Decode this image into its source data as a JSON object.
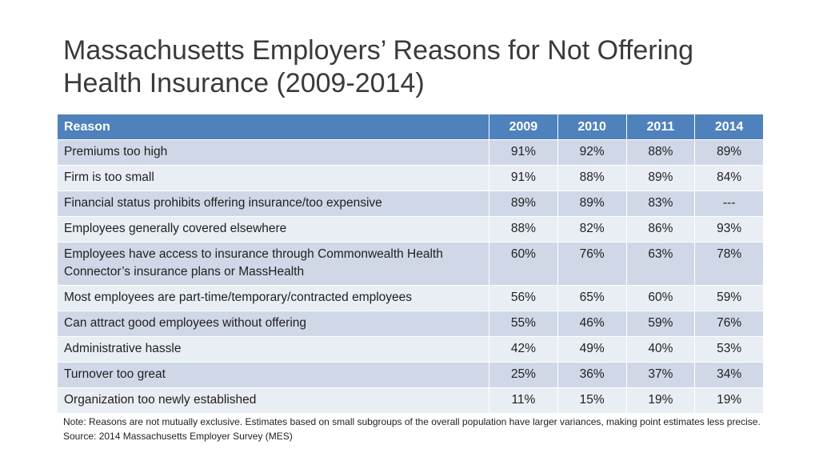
{
  "slide": {
    "title_line1": "Massachusetts Employers’ Reasons for Not Offering",
    "title_line2": "Health Insurance (2009-2014)"
  },
  "table": {
    "headers": [
      "Reason",
      "2009",
      "2010",
      "2011",
      "2014"
    ],
    "rows": [
      {
        "reason": "Premiums too high",
        "v2009": "91%",
        "v2010": "92%",
        "v2011": "88%",
        "v2014": "89%"
      },
      {
        "reason": "Firm is too small",
        "v2009": "91%",
        "v2010": "88%",
        "v2011": "89%",
        "v2014": "84%"
      },
      {
        "reason": "Financial status prohibits offering insurance/too expensive",
        "v2009": "89%",
        "v2010": "89%",
        "v2011": "83%",
        "v2014": "---"
      },
      {
        "reason": "Employees generally covered elsewhere",
        "v2009": "88%",
        "v2010": "82%",
        "v2011": "86%",
        "v2014": "93%"
      },
      {
        "reason": "Employees have access to insurance through Commonwealth Health Connector’s insurance plans or MassHealth",
        "v2009": "60%",
        "v2010": "76%",
        "v2011": "63%",
        "v2014": "78%"
      },
      {
        "reason": "Most employees are part-time/temporary/contracted employees",
        "v2009": "56%",
        "v2010": "65%",
        "v2011": "60%",
        "v2014": "59%"
      },
      {
        "reason": "Can attract good employees without offering",
        "v2009": "55%",
        "v2010": "46%",
        "v2011": "59%",
        "v2014": "76%"
      },
      {
        "reason": "Administrative hassle",
        "v2009": "42%",
        "v2010": "49%",
        "v2011": "40%",
        "v2014": "53%"
      },
      {
        "reason": "Turnover too great",
        "v2009": "25%",
        "v2010": "36%",
        "v2011": "37%",
        "v2014": "34%"
      },
      {
        "reason": "Organization too newly established",
        "v2009": "11%",
        "v2010": "15%",
        "v2011": "19%",
        "v2014": "19%"
      }
    ]
  },
  "footnote": {
    "note": "Note: Reasons are not mutually exclusive.   Estimates based on small subgroups of the overall population have larger variances, making point estimates less precise.",
    "source": "Source: 2014 Massachusetts Employer Survey (MES)"
  },
  "colors": {
    "header_bg": "#4f81bd",
    "row_dark": "#d0d8e8",
    "row_light": "#e9edf4"
  }
}
